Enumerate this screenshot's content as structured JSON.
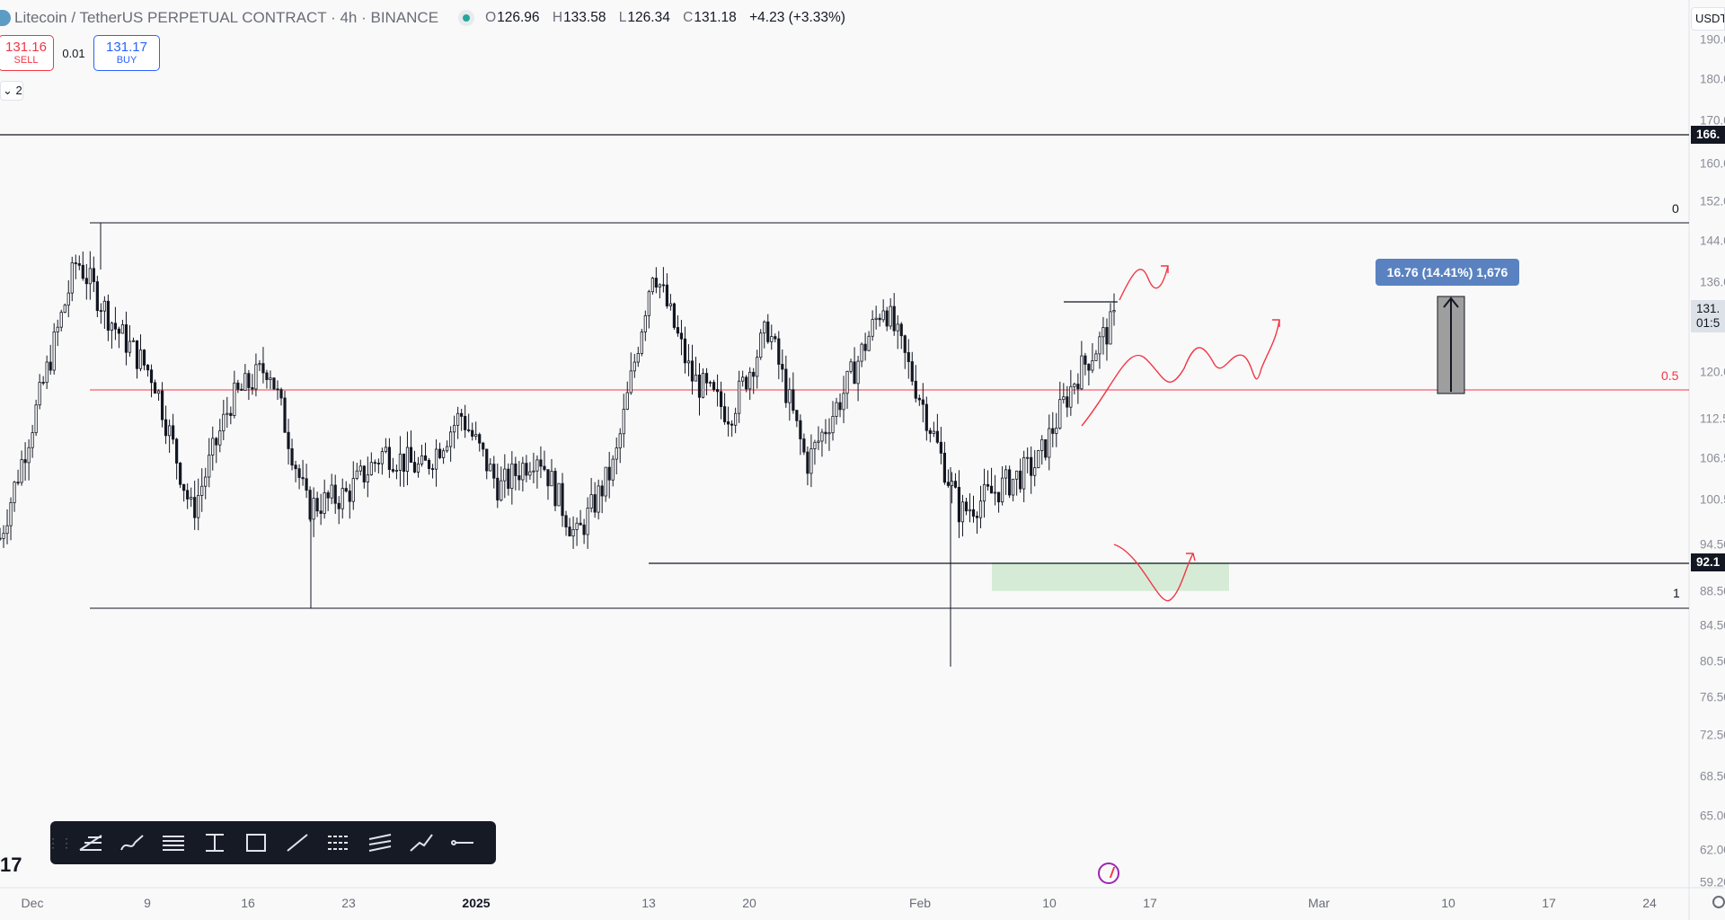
{
  "header": {
    "title": "Litecoin / TetherUS PERPETUAL CONTRACT · 4h · BINANCE",
    "ohlc": {
      "o_key": "O",
      "o": "126.96",
      "h_key": "H",
      "h": "133.58",
      "l_key": "L",
      "l": "126.34",
      "c_key": "C",
      "c": "131.18",
      "change": "+4.23 (+3.33%)"
    }
  },
  "trade": {
    "sell_price": "131.16",
    "sell_label": "SELL",
    "spread": "0.01",
    "buy_price": "131.17",
    "buy_label": "BUY"
  },
  "indicators_collapse": "⌄ 2",
  "price_axis": {
    "currency": "USDT",
    "labels": [
      "190.00",
      "180.00",
      "170.00",
      "160.00",
      "152.00",
      "144.00",
      "136.00",
      "120.00",
      "112.50",
      "106.50",
      "100.50",
      "94.50",
      "88.50",
      "84.50",
      "80.50",
      "76.50",
      "72.50",
      "68.50",
      "65.00",
      "62.00",
      "59.20"
    ],
    "tags": {
      "resistance": "166.",
      "support": "92.1",
      "current_price": "131.",
      "countdown": "01:5"
    }
  },
  "time_axis": [
    "Dec",
    "9",
    "16",
    "23",
    "2025",
    "13",
    "20",
    "Feb",
    "10",
    "17",
    "Mar",
    "10",
    "17",
    "24"
  ],
  "fib": {
    "level_0": "0",
    "level_05": "0.5",
    "level_1": "1"
  },
  "measure": "16.76 (14.41%) 1,676",
  "colors": {
    "fib_mid": "#f23645",
    "zone": "#c8e6c9",
    "measure_box": "#5a82c0",
    "candles": "#131722",
    "arrows": "#f23645"
  },
  "toolbar": {
    "tools": [
      "fib-retracement-icon",
      "brush-icon",
      "horizontal-lines-icon",
      "date-price-range-icon",
      "rectangle-icon",
      "trend-line-icon",
      "fib-channel-icon",
      "parallel-channel-icon",
      "path-icon",
      "horizontal-ray-icon"
    ]
  },
  "chart_data": {
    "type": "candlestick",
    "ylim": [
      59.2,
      190
    ],
    "series_note": "",
    "levels": [
      166.5,
      144.5,
      117.7,
      92.1,
      87.5
    ],
    "zone": [
      87.5,
      92.1
    ],
    "closes_sample": [
      96,
      118,
      141,
      130,
      122,
      100,
      118,
      124,
      101,
      103,
      110,
      107,
      116,
      104,
      110,
      96,
      108,
      140,
      122,
      116,
      130,
      108,
      120,
      134,
      118,
      100,
      104,
      108,
      122,
      131
    ]
  }
}
